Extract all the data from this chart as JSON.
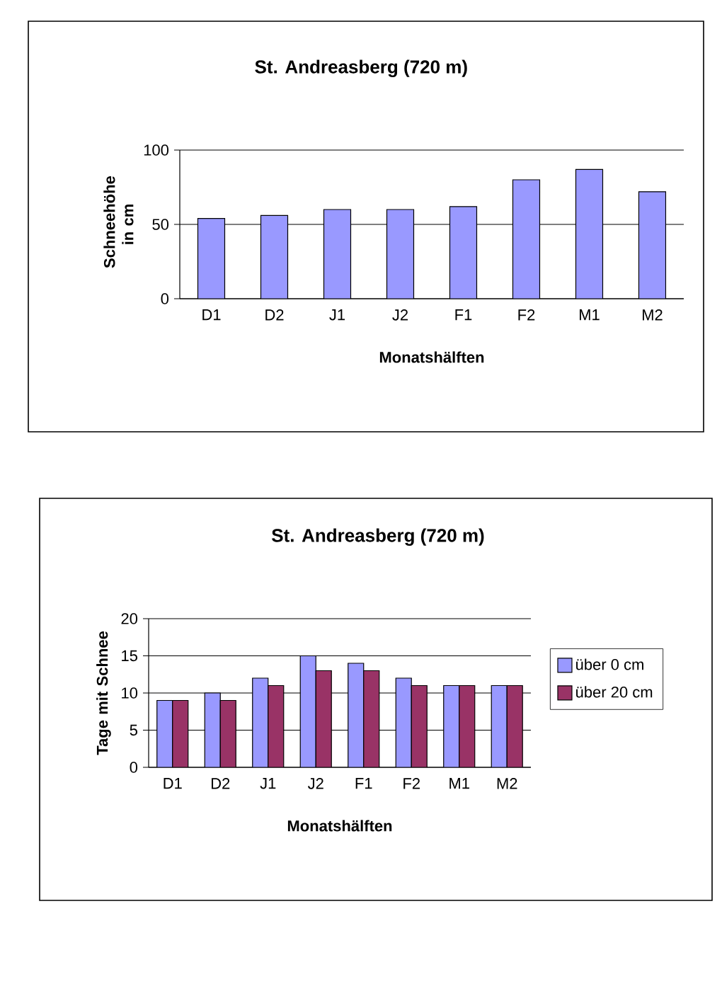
{
  "chart_data": [
    {
      "type": "bar",
      "title": "St. Andreasberg (720 m)",
      "xlabel": "Monatshälften",
      "ylabel": "Schneehöhe in cm",
      "categories": [
        "D1",
        "D2",
        "J1",
        "J2",
        "F1",
        "F2",
        "M1",
        "M2"
      ],
      "series": [
        {
          "color": "#9999ff",
          "values": [
            54,
            56,
            60,
            60,
            62,
            80,
            87,
            72
          ]
        }
      ],
      "ylim": [
        0,
        100
      ],
      "yticks": [
        0,
        50,
        100
      ],
      "grid": "y",
      "legend": false
    },
    {
      "type": "bar",
      "title": "St. Andreasberg (720 m)",
      "xlabel": "Monatshälften",
      "ylabel": "Tage mit Schnee",
      "categories": [
        "D1",
        "D2",
        "J1",
        "J2",
        "F1",
        "F2",
        "M1",
        "M2"
      ],
      "series": [
        {
          "name": "über 0 cm",
          "color": "#9999ff",
          "values": [
            9,
            10,
            12,
            15,
            14,
            12,
            11,
            11
          ]
        },
        {
          "name": "über 20 cm",
          "color": "#993366",
          "values": [
            9,
            9,
            11,
            13,
            13,
            11,
            11,
            11
          ]
        }
      ],
      "ylim": [
        0,
        20
      ],
      "yticks": [
        0,
        5,
        10,
        15,
        20
      ],
      "grid": "y",
      "legend": "right"
    }
  ]
}
